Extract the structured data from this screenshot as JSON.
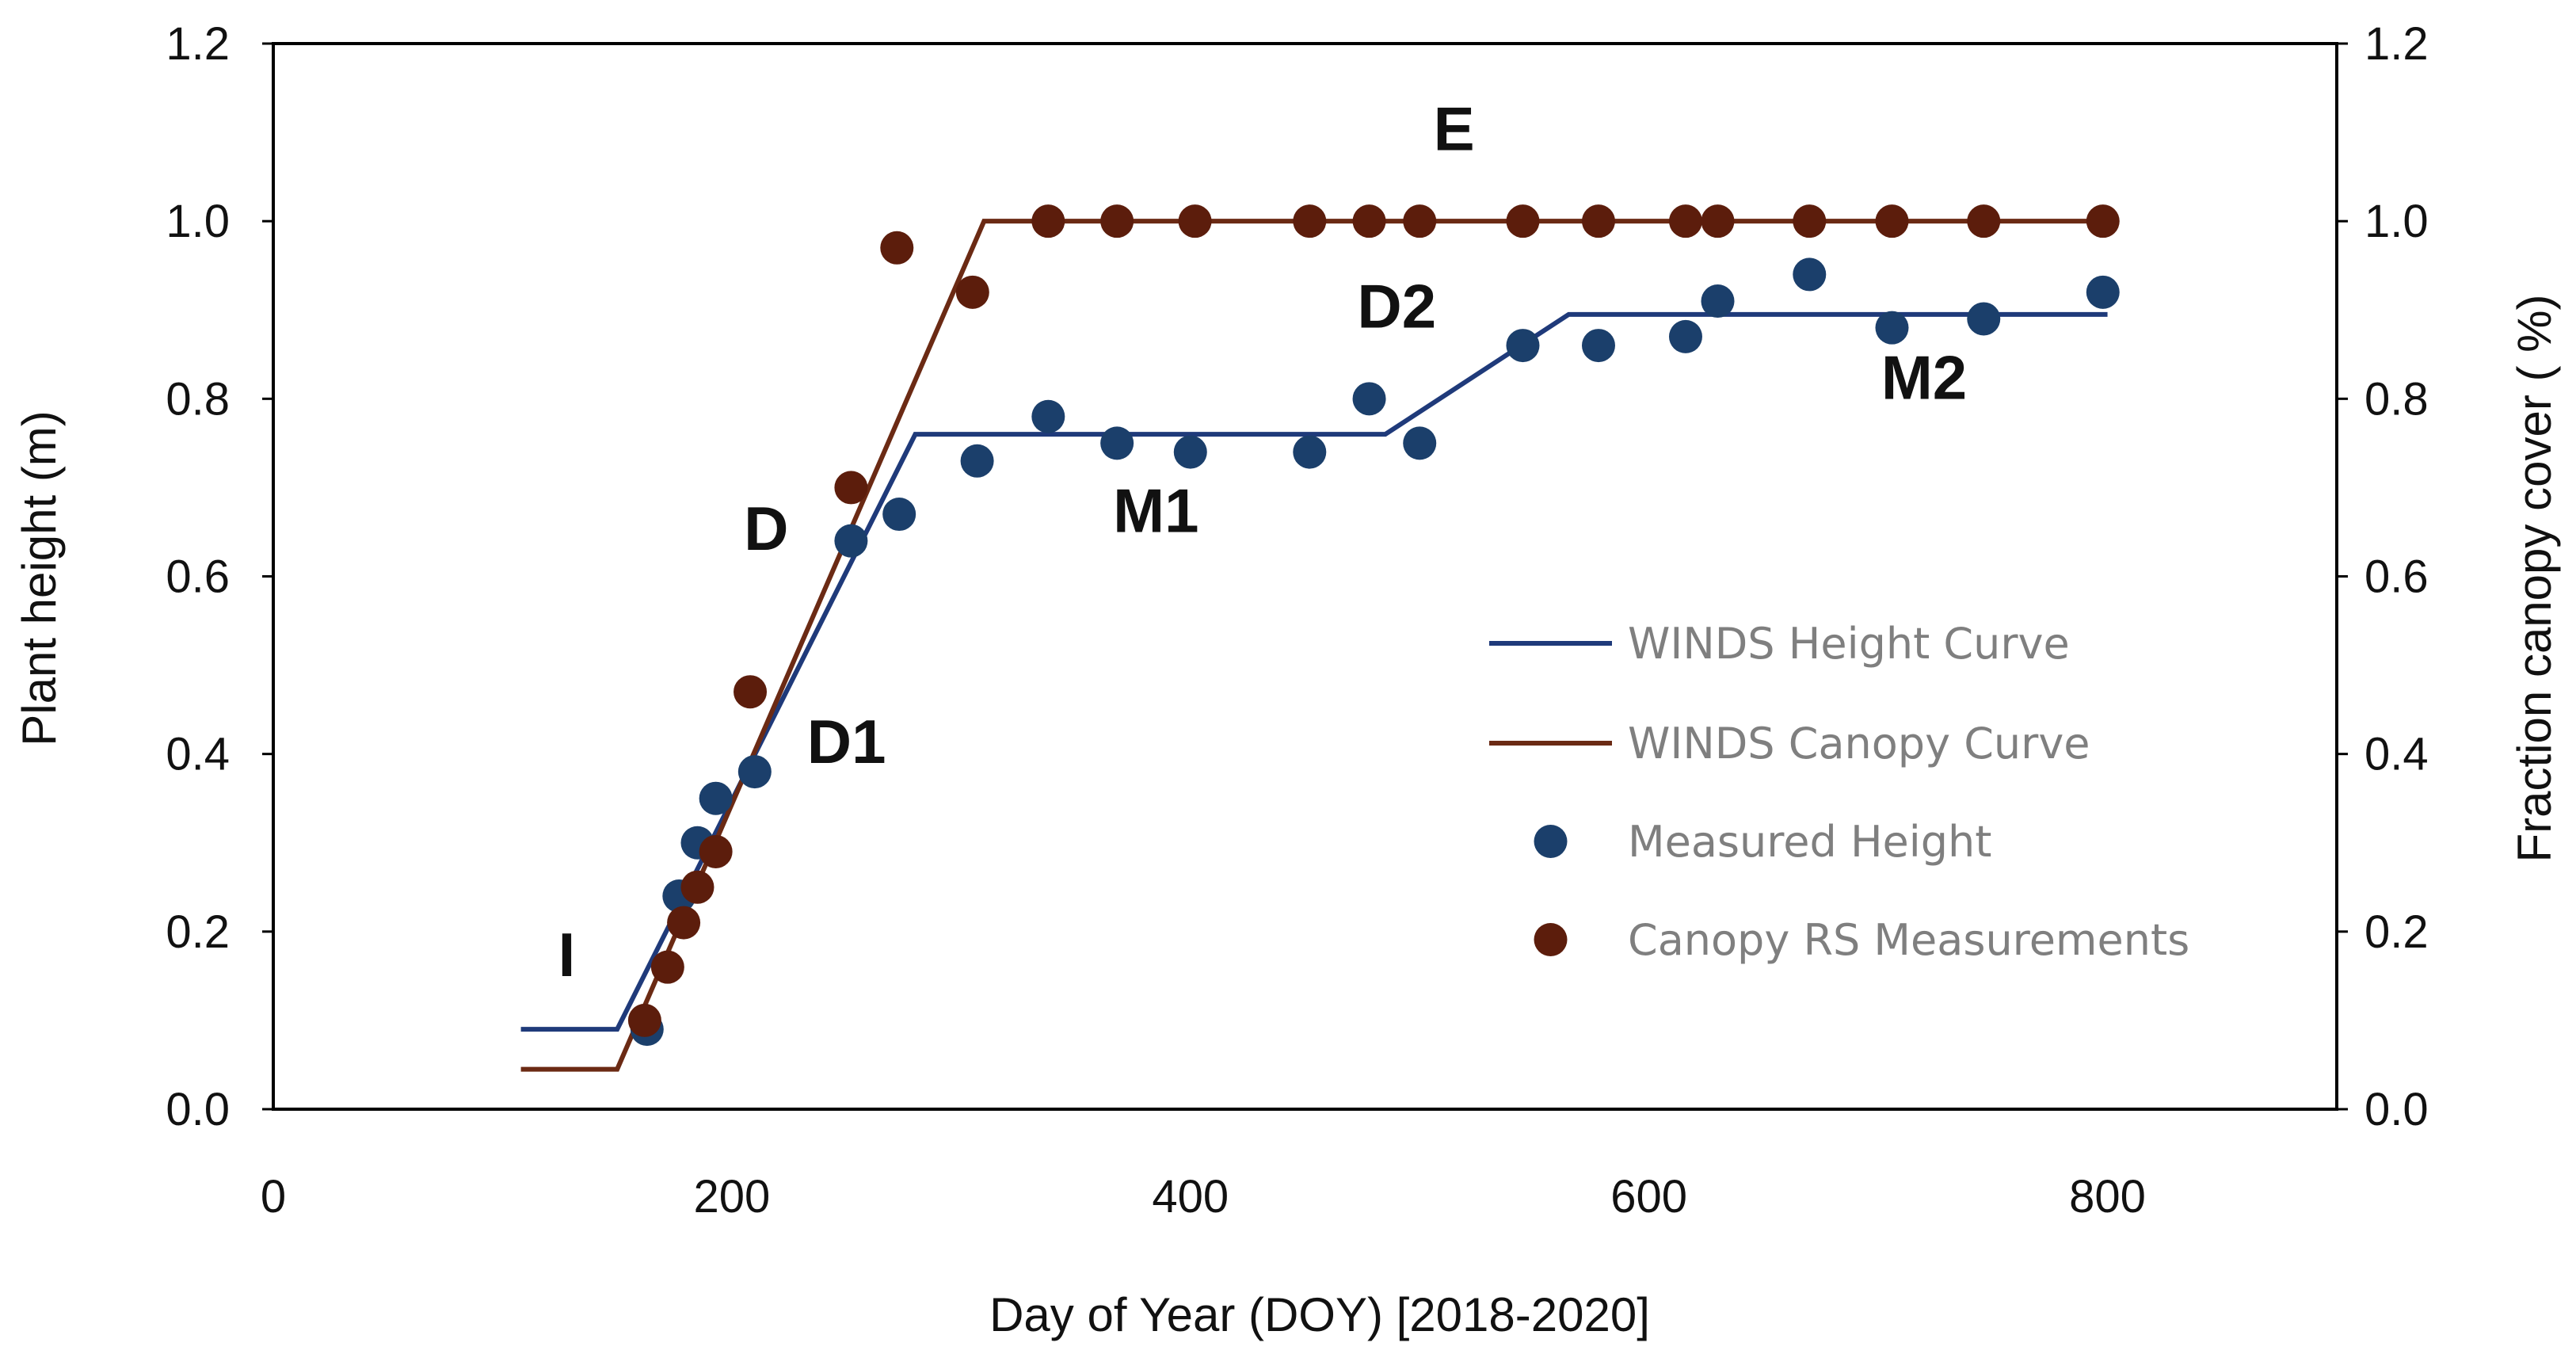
{
  "chart_data": {
    "type": "line",
    "title": "",
    "xlabel": "Day of Year (DOY) [2018-2020]",
    "ylabel": "Plant height (m)",
    "y2label": "Fraction canopy cover ( %)",
    "xlim": [
      0,
      900
    ],
    "ylim": [
      0,
      1.2
    ],
    "y2lim": [
      0,
      1.2
    ],
    "xticks": [
      "0",
      "200",
      "400",
      "600",
      "800"
    ],
    "xtick_values": [
      0,
      200,
      400,
      600,
      800
    ],
    "yticks": [
      "0.0",
      "0.2",
      "0.4",
      "0.6",
      "0.8",
      "1.0",
      "1.2"
    ],
    "ytick_values": [
      0,
      0.2,
      0.4,
      0.6,
      0.8,
      1.0,
      1.2
    ],
    "y2ticks": [
      "0.0",
      "0.2",
      "0.4",
      "0.6",
      "0.8",
      "1.0",
      "1.2"
    ],
    "grid": false,
    "legend_position": "right-center",
    "colors": {
      "height": "#1f3a7a",
      "canopy": "#6b2a14",
      "height_points": "#1b3f6b",
      "canopy_points": "#5c1d0c"
    },
    "series": [
      {
        "name": "WINDS Height Curve",
        "kind": "line",
        "color_key": "height",
        "points": [
          [
            108,
            0.09
          ],
          [
            150,
            0.09
          ],
          [
            280,
            0.76
          ],
          [
            485,
            0.76
          ],
          [
            565,
            0.895
          ],
          [
            800,
            0.895
          ]
        ]
      },
      {
        "name": "WINDS Canopy Curve",
        "kind": "line",
        "color_key": "canopy",
        "points": [
          [
            108,
            0.045
          ],
          [
            150,
            0.045
          ],
          [
            310,
            1.0
          ],
          [
            800,
            1.0
          ]
        ]
      },
      {
        "name": "Measured Height",
        "kind": "scatter",
        "color_key": "height_points",
        "points": [
          [
            163,
            0.09
          ],
          [
            177,
            0.24
          ],
          [
            185,
            0.3
          ],
          [
            193,
            0.35
          ],
          [
            210,
            0.38
          ],
          [
            252,
            0.64
          ],
          [
            273,
            0.67
          ],
          [
            307,
            0.73
          ],
          [
            338,
            0.78
          ],
          [
            368,
            0.75
          ],
          [
            400,
            0.74
          ],
          [
            452,
            0.74
          ],
          [
            478,
            0.8
          ],
          [
            500,
            0.75
          ],
          [
            545,
            0.86
          ],
          [
            578,
            0.86
          ],
          [
            616,
            0.87
          ],
          [
            630,
            0.91
          ],
          [
            670,
            0.94
          ],
          [
            706,
            0.88
          ],
          [
            746,
            0.89
          ],
          [
            798,
            0.92
          ]
        ]
      },
      {
        "name": "Canopy RS Measurements",
        "kind": "scatter",
        "color_key": "canopy_points",
        "points": [
          [
            162,
            0.1
          ],
          [
            172,
            0.16
          ],
          [
            179,
            0.21
          ],
          [
            185,
            0.25
          ],
          [
            193,
            0.29
          ],
          [
            208,
            0.47
          ],
          [
            252,
            0.7
          ],
          [
            272,
            0.97
          ],
          [
            305,
            0.92
          ],
          [
            338,
            1.0
          ],
          [
            368,
            1.0
          ],
          [
            402,
            1.0
          ],
          [
            452,
            1.0
          ],
          [
            478,
            1.0
          ],
          [
            500,
            1.0
          ],
          [
            545,
            1.0
          ],
          [
            578,
            1.0
          ],
          [
            616,
            1.0
          ],
          [
            630,
            1.0
          ],
          [
            670,
            1.0
          ],
          [
            706,
            1.0
          ],
          [
            746,
            1.0
          ],
          [
            798,
            1.0
          ]
        ]
      }
    ],
    "annotations": [
      {
        "text": "I",
        "x": 128,
        "y": 0.15
      },
      {
        "text": "D",
        "x": 215,
        "y": 0.63
      },
      {
        "text": "D1",
        "x": 250,
        "y": 0.39
      },
      {
        "text": "M1",
        "x": 385,
        "y": 0.65
      },
      {
        "text": "D2",
        "x": 490,
        "y": 0.88
      },
      {
        "text": "M2",
        "x": 720,
        "y": 0.8
      },
      {
        "text": "E",
        "x": 515,
        "y": 1.08
      }
    ]
  }
}
